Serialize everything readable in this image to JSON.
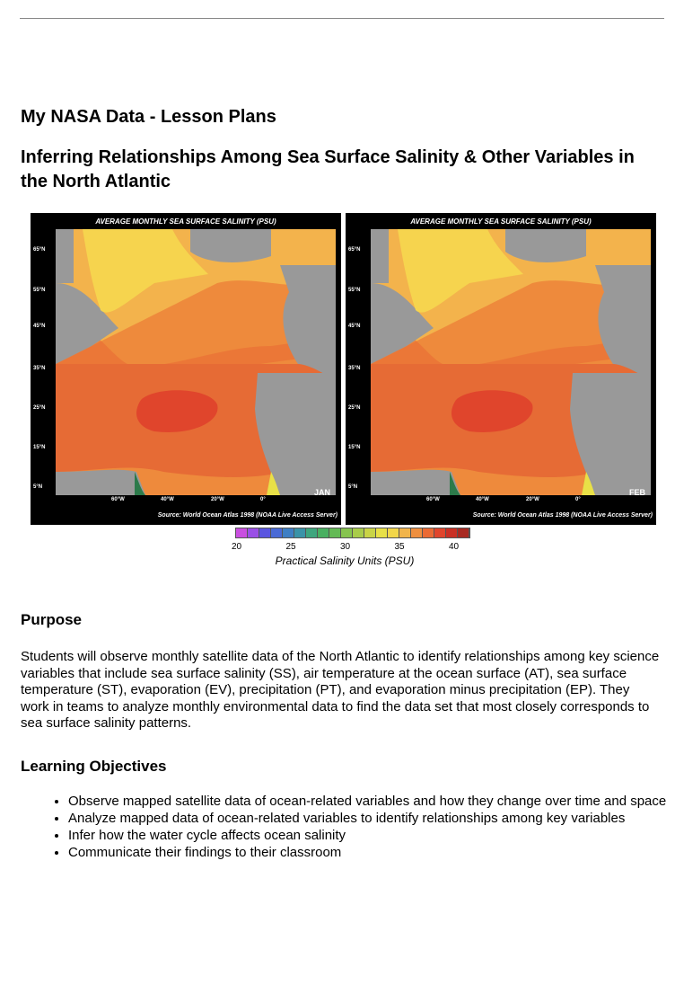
{
  "site_title": "My NASA Data - Lesson Plans",
  "lesson_title": "Inferring Relationships Among Sea Surface Salinity & Other Variables in the North Atlantic",
  "figure": {
    "maps": [
      {
        "title": "AVERAGE MONTHLY SEA SURFACE SALINITY (PSU)",
        "month": "JAN",
        "source": "Source: World Ocean Atlas 1998 (NOAA Live Access Server)"
      },
      {
        "title": "AVERAGE MONTHLY SEA SURFACE SALINITY (PSU)",
        "month": "FEB",
        "source": "Source: World Ocean Atlas 1998 (NOAA Live Access Server)"
      }
    ],
    "lat_labels": [
      "65°N",
      "55°N",
      "45°N",
      "35°N",
      "25°N",
      "15°N",
      "5°N"
    ],
    "lon_labels": [
      "60°W",
      "40°W",
      "20°W",
      "0°"
    ],
    "colorbar": {
      "ticks": [
        "20",
        "25",
        "30",
        "35",
        "40"
      ],
      "label": "Practical Salinity Units (PSU)",
      "colors": [
        "#c94fe0",
        "#9a4fe6",
        "#5a55e0",
        "#4a6ad6",
        "#3f7fc4",
        "#3a93a8",
        "#3ea67e",
        "#49b061",
        "#63ba55",
        "#86c44f",
        "#a8cc4a",
        "#c9d446",
        "#e8e047",
        "#f2d64a",
        "#f1b44a",
        "#ee8f3f",
        "#ea6a34",
        "#e0452c",
        "#c93025",
        "#a82a22"
      ]
    }
  },
  "purpose": {
    "heading": "Purpose",
    "text": "Students will observe monthly satellite data of the North Atlantic to identify relationships among key science variables that include sea surface salinity (SS), air temperature at the ocean surface (AT), sea surface temperature (ST), evaporation (EV), precipitation (PT), and evaporation minus precipitation (EP).  They work in teams to analyze monthly environmental data to find the data set that most closely corresponds to sea surface salinity patterns."
  },
  "objectives": {
    "heading": "Learning Objectives",
    "items": [
      "Observe mapped satellite data of ocean-related variables and how they change over time and space",
      "Analyze mapped data of ocean-related variables to identify relationships among key variables",
      "Infer how the water cycle affects ocean salinity",
      "Communicate their findings to their classroom"
    ]
  }
}
